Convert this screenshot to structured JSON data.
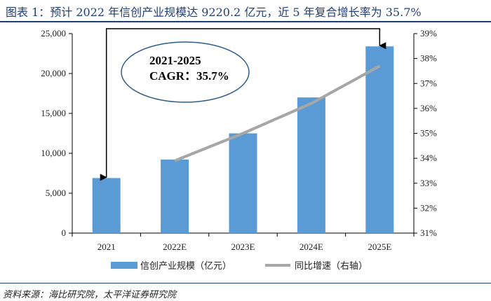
{
  "title": "图表 1：预计 2022 年信创产业规模达 9220.2 亿元，近 5 年复合增长率为 35.7%",
  "source": "资料来源：海比研究院，太平洋证券研究院",
  "colors": {
    "bar": "#5b9bd5",
    "line": "#a6a6a6",
    "title": "#1f3f7a",
    "ellipse": "#2e5c8a"
  },
  "chart_data": {
    "type": "bar",
    "categories": [
      "2021",
      "2022E",
      "2023E",
      "2024E",
      "2025E"
    ],
    "series": [
      {
        "name": "信创产业规模（亿元）",
        "type": "bar",
        "axis": "left",
        "values": [
          6900,
          9220,
          12500,
          17000,
          23400
        ]
      },
      {
        "name": "同比增速（右轴）",
        "type": "line",
        "axis": "right",
        "values": [
          null,
          0.339,
          0.35,
          0.362,
          0.377
        ]
      }
    ],
    "y_left": {
      "lim": [
        0,
        25000
      ],
      "ticks": [
        "0",
        "5,000",
        "10,000",
        "15,000",
        "20,000",
        "25,000"
      ]
    },
    "y_right": {
      "lim": [
        0.31,
        0.39
      ],
      "ticks": [
        "31%",
        "32%",
        "33%",
        "34%",
        "35%",
        "36%",
        "37%",
        "38%",
        "39%"
      ]
    },
    "annotation": {
      "line1": "2021-2025",
      "line2": "CAGR：35.7%"
    },
    "legend_position": "bottom"
  }
}
